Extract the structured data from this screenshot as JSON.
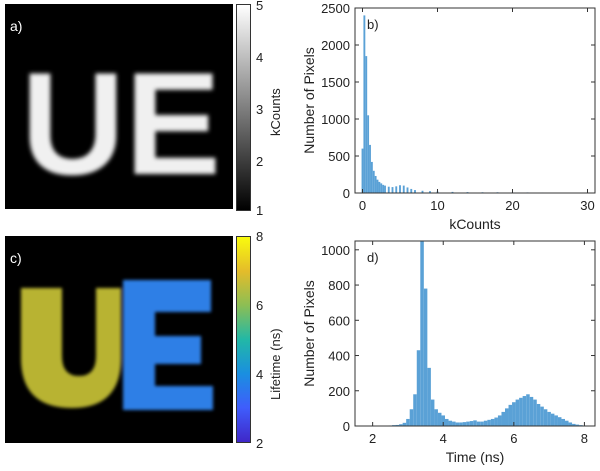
{
  "figure": {
    "panels": {
      "a": {
        "letter": "a)",
        "image_text": "UE"
      },
      "b": {
        "letter": "b)"
      },
      "c": {
        "letter": "c)",
        "image_text": "UE"
      },
      "d": {
        "letter": "d)"
      }
    },
    "colorbars": {
      "a": {
        "label": "kCounts",
        "ticks": [
          "5",
          "4",
          "3",
          "2",
          "1"
        ],
        "range": [
          1,
          5
        ],
        "colormap": "gray"
      },
      "c": {
        "label": "Lifetime (ns)",
        "ticks": [
          "8",
          "6",
          "4",
          "2"
        ],
        "range": [
          2,
          8
        ],
        "colormap": "parula"
      }
    },
    "colors": {
      "bar": "#5aa1d6",
      "image_bg": "#000000",
      "letters_gray": "#f2f2f2",
      "u_lifetime": "#b8b331",
      "e_lifetime": "#2f7fe6"
    }
  },
  "chart_data": [
    {
      "type": "bar",
      "panel": "b)",
      "xlabel": "kCounts",
      "ylabel": "Number of Pixels",
      "xlim": [
        -1,
        31
      ],
      "ylim": [
        0,
        2500
      ],
      "xticks": [
        0,
        10,
        20,
        30
      ],
      "yticks": [
        0,
        500,
        1000,
        1500,
        2000,
        2500
      ],
      "bin_width": 0.25,
      "x": [
        0.0,
        0.25,
        0.5,
        0.75,
        1.0,
        1.25,
        1.5,
        1.75,
        2.0,
        2.25,
        2.5,
        2.75,
        3.0,
        3.5,
        4.0,
        4.5,
        5.0,
        5.5,
        6.0,
        6.5,
        7.0,
        8.0,
        9.0,
        10.0,
        12.0,
        14.0,
        16.0,
        18.0,
        20.0,
        22.0,
        24.0,
        26.0,
        28.0,
        30.0
      ],
      "values": [
        600,
        2400,
        1850,
        1050,
        650,
        420,
        300,
        230,
        180,
        150,
        130,
        110,
        100,
        85,
        80,
        90,
        105,
        100,
        75,
        55,
        40,
        30,
        25,
        20,
        15,
        12,
        10,
        10,
        8,
        8,
        7,
        6,
        5,
        5
      ]
    },
    {
      "type": "bar",
      "panel": "d)",
      "xlabel": "Time (ns)",
      "ylabel": "Number of Pixels",
      "xlim": [
        1.5,
        8.3
      ],
      "ylim": [
        0,
        1050
      ],
      "xticks": [
        2,
        4,
        6,
        8
      ],
      "yticks": [
        0,
        200,
        400,
        600,
        800,
        1000
      ],
      "bin_width": 0.1,
      "x": [
        2.0,
        2.1,
        2.2,
        2.3,
        2.4,
        2.5,
        2.6,
        2.7,
        2.8,
        2.9,
        3.0,
        3.1,
        3.2,
        3.3,
        3.4,
        3.5,
        3.6,
        3.7,
        3.8,
        3.9,
        4.0,
        4.1,
        4.2,
        4.3,
        4.4,
        4.5,
        4.6,
        4.7,
        4.8,
        4.9,
        5.0,
        5.1,
        5.2,
        5.3,
        5.4,
        5.5,
        5.6,
        5.7,
        5.8,
        5.9,
        6.0,
        6.1,
        6.2,
        6.3,
        6.4,
        6.5,
        6.6,
        6.7,
        6.8,
        6.9,
        7.0,
        7.1,
        7.2,
        7.3,
        7.4,
        7.5,
        7.6,
        7.7,
        7.8,
        7.9,
        8.0
      ],
      "values": [
        0,
        0,
        0,
        0,
        2,
        3,
        5,
        6,
        10,
        18,
        40,
        95,
        180,
        430,
        1050,
        780,
        330,
        150,
        95,
        75,
        60,
        40,
        30,
        25,
        20,
        20,
        22,
        25,
        28,
        32,
        25,
        25,
        30,
        35,
        40,
        48,
        60,
        80,
        100,
        120,
        135,
        150,
        160,
        170,
        180,
        165,
        150,
        125,
        110,
        95,
        80,
        70,
        60,
        50,
        40,
        30,
        20,
        12,
        8,
        5,
        3
      ]
    }
  ]
}
